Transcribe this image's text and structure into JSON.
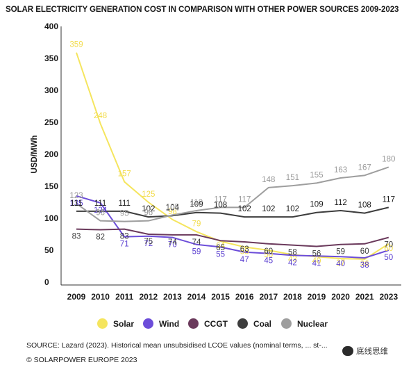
{
  "title": "SOLAR ELECTRICITY GENERATION COST IN COMPARISON WITH OTHER POWER SOURCES 2009-2023",
  "chart_data": {
    "type": "line",
    "title": "SOLAR ELECTRICITY GENERATION COST IN COMPARISON WITH OTHER POWER SOURCES 2009-2023",
    "xlabel": "",
    "ylabel": "USD/MWh",
    "ylim": [
      0,
      400
    ],
    "yticks": [
      0,
      50,
      100,
      150,
      200,
      250,
      300,
      350,
      400
    ],
    "grid": false,
    "legend": "bottom",
    "categories": [
      "2009",
      "2010",
      "2011",
      "2012",
      "2013",
      "2014",
      "2015",
      "2016",
      "2017",
      "2018",
      "2019",
      "2020",
      "2021",
      "2023"
    ],
    "series": [
      {
        "name": "Solar",
        "color": "#f5e55e",
        "values": [
          359,
          248,
          157,
          125,
          98,
          79,
          64,
          55,
          50,
          43,
          40,
          37,
          36,
          60
        ]
      },
      {
        "name": "Wind",
        "color": "#6c4dd9",
        "values": [
          135,
          124,
          71,
          72,
          70,
          59,
          55,
          47,
          45,
          42,
          41,
          40,
          38,
          50
        ]
      },
      {
        "name": "CCGT",
        "color": "#6b3a5c",
        "values": [
          83,
          82,
          83,
          75,
          74,
          74,
          65,
          63,
          60,
          58,
          56,
          59,
          60,
          70
        ]
      },
      {
        "name": "Coal",
        "color": "#3d3d3d",
        "values": [
          111,
          111,
          111,
          102,
          104,
          109,
          108,
          102,
          102,
          102,
          109,
          112,
          108,
          117
        ]
      },
      {
        "name": "Nuclear",
        "color": "#9e9e9e",
        "values": [
          123,
          96,
          95,
          96,
          105,
          112,
          117,
          117,
          148,
          151,
          155,
          163,
          167,
          180
        ]
      }
    ]
  },
  "legend_items": [
    {
      "label": "Solar",
      "color": "#f5e55e"
    },
    {
      "label": "Wind",
      "color": "#6c4dd9"
    },
    {
      "label": "CCGT",
      "color": "#6b3a5c"
    },
    {
      "label": "Coal",
      "color": "#3d3d3d"
    },
    {
      "label": "Nuclear",
      "color": "#9e9e9e"
    }
  ],
  "source": "SOURCE: Lazard (2023). Historical mean unsubsidised LCOE values (nominal terms, ... st-...",
  "copyright": "© SOLARPOWER EUROPE 2023",
  "watermark": "底线思维"
}
